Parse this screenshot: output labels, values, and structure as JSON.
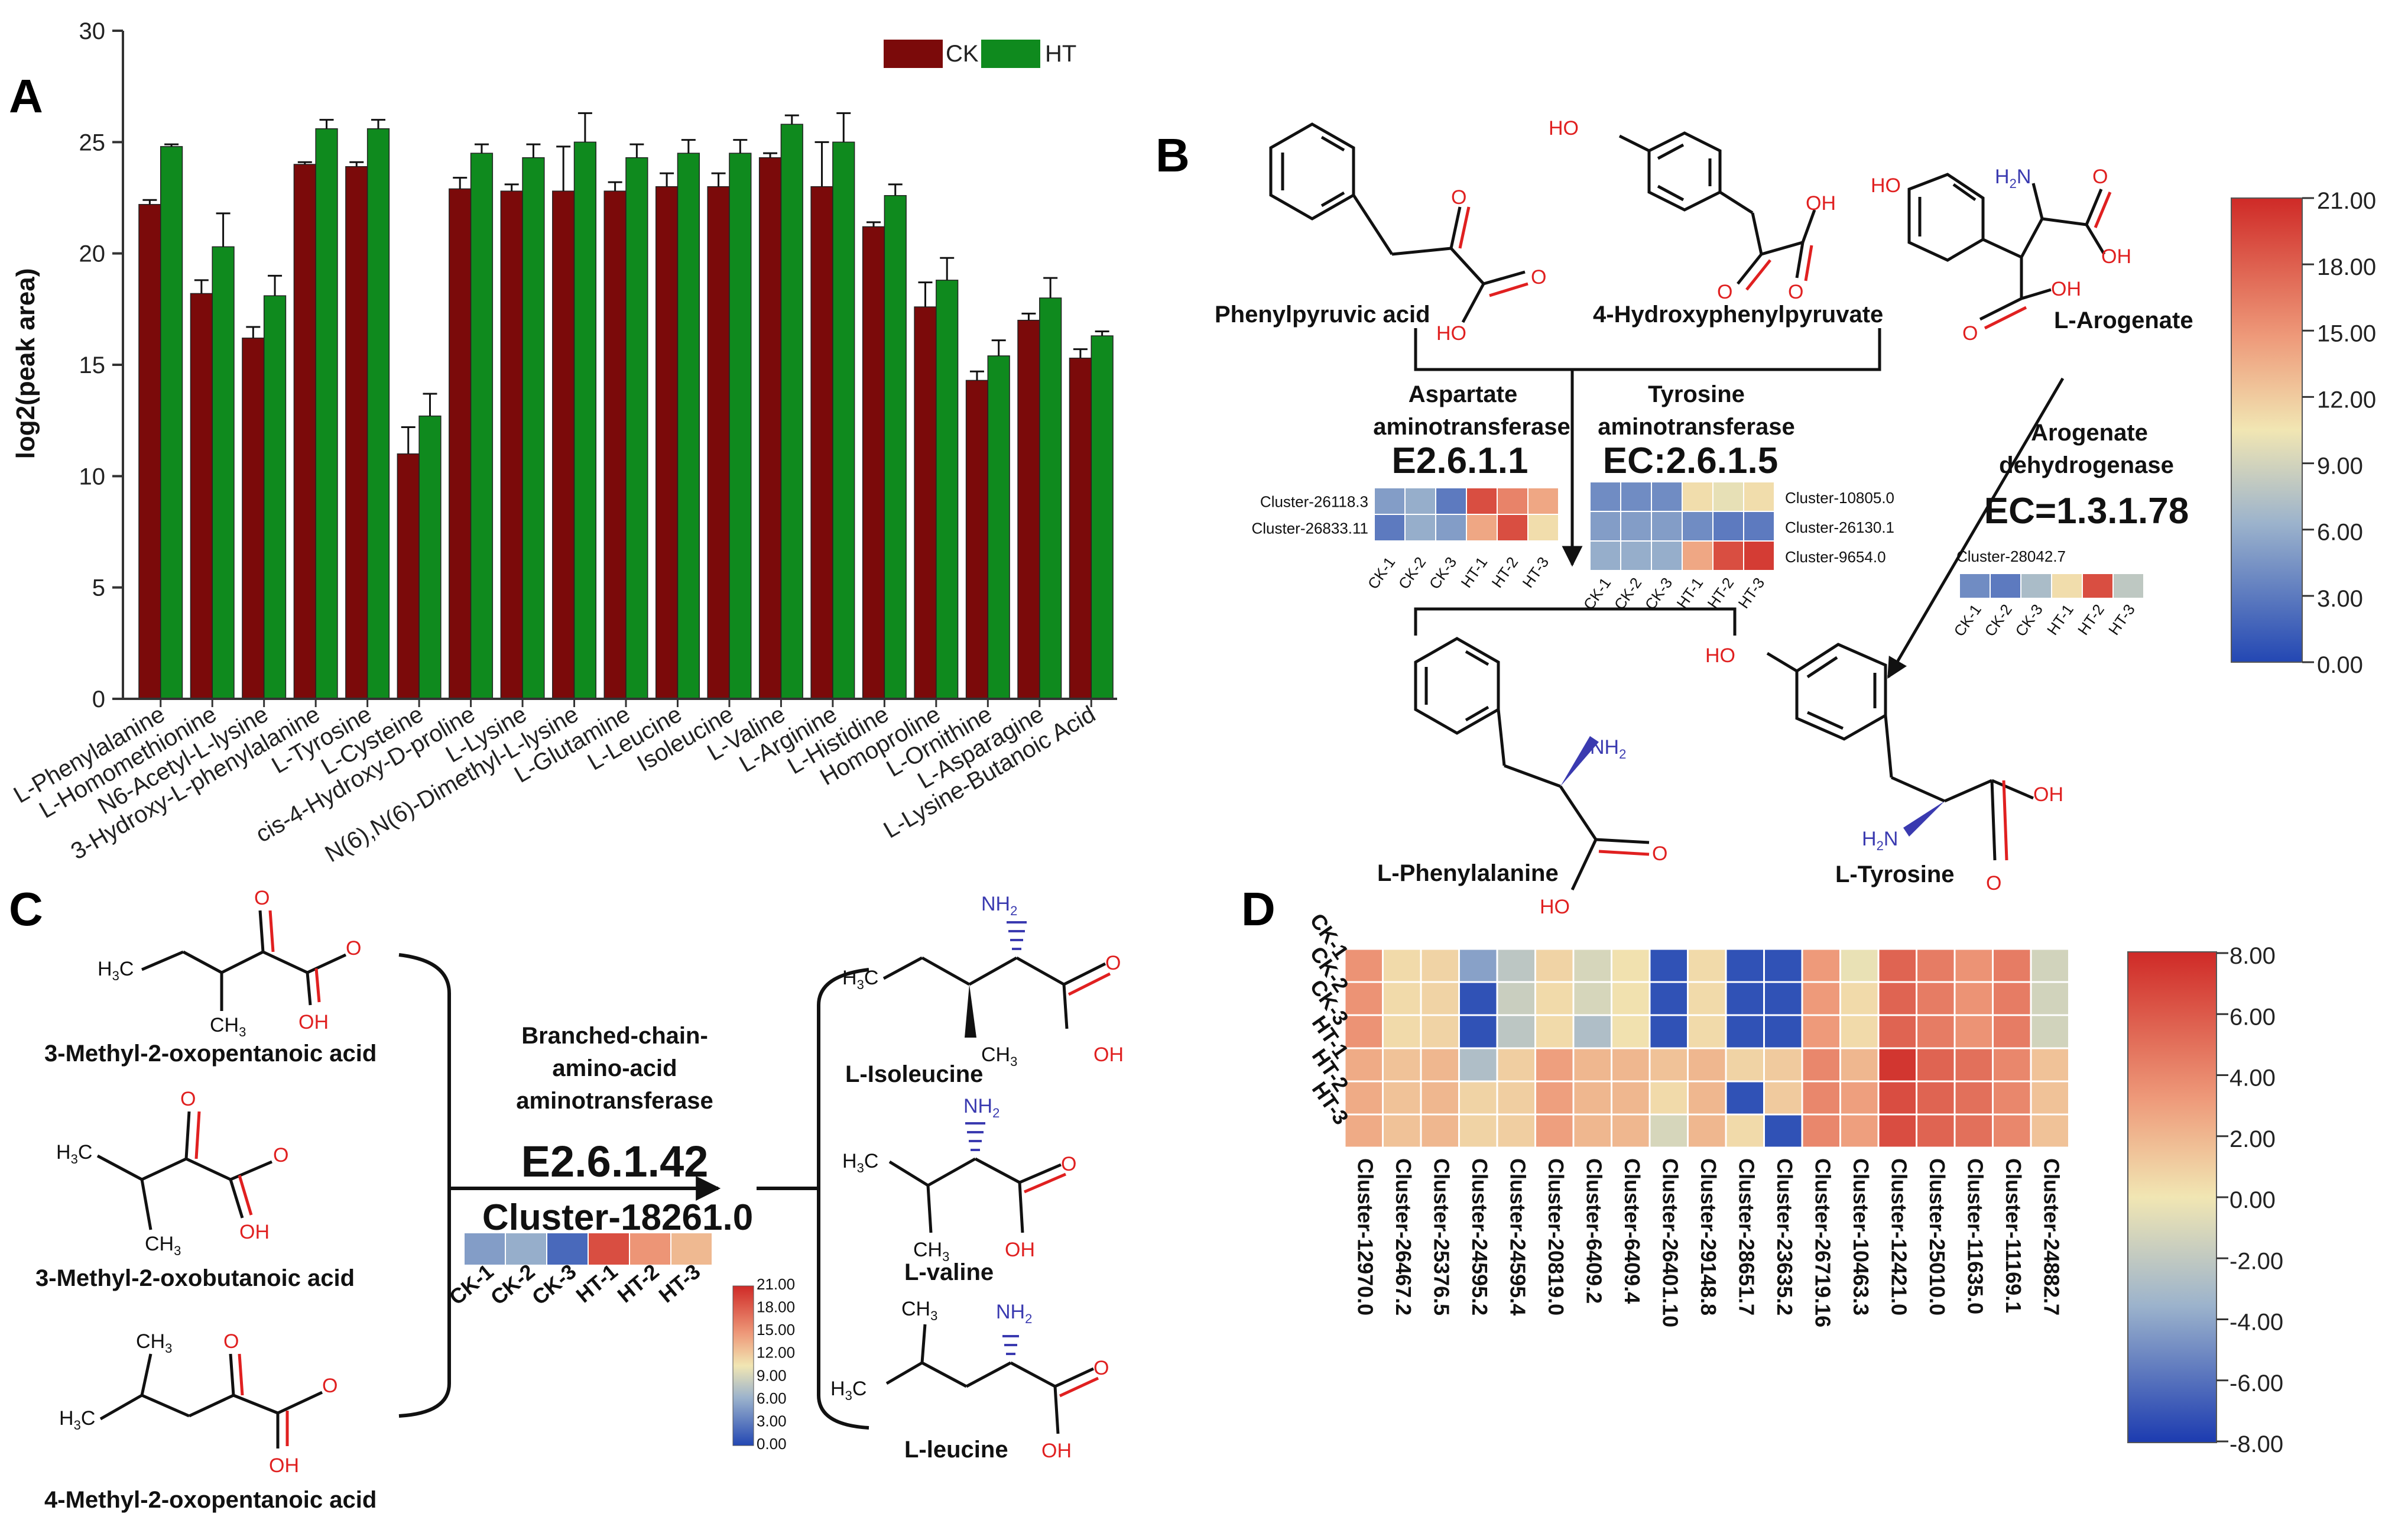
{
  "colors": {
    "ck": "#7b0a0a",
    "ht": "#0f8a1e",
    "red": "#d11f1f",
    "blue": "#2a4fa8",
    "ox": "#e02020",
    "nitro": "#3a3ab0"
  },
  "panel_labels": {
    "a": "A",
    "b": "B",
    "c": "C",
    "d": "D"
  },
  "chart_data": [
    {
      "type": "bar",
      "panel": "A",
      "ylabel": "log2(peak area)",
      "ylim": [
        0,
        30
      ],
      "yticks": [
        "0",
        "5",
        "10",
        "15",
        "20",
        "25",
        "30"
      ],
      "legend": [
        "CK",
        "HT"
      ],
      "categories": [
        "L-Phenylalanine",
        "L-Homomethionine",
        "N6-Acetyl-L-lysine",
        "3-Hydroxy-L-phenylalanine",
        "L-Tyrosine",
        "L-Cysteine",
        "cis-4-Hydroxy-D-proline",
        "L-Lysine",
        "N(6),N(6)-Dimethyl-L-lysine",
        "L-Glutamine",
        "L-Leucine",
        "Isoleucine",
        "L-Valine",
        "L-Arginine",
        "L-Histidine",
        "Homoproline",
        "L-Ornithine",
        "L-Asparagine",
        "L-Lysine-Butanoic Acid"
      ],
      "series": [
        {
          "name": "CK",
          "values": [
            22.2,
            18.2,
            16.2,
            24.0,
            23.9,
            11.0,
            22.9,
            22.8,
            22.8,
            22.8,
            23.0,
            23.0,
            24.3,
            23.0,
            21.2,
            17.6,
            14.3,
            17.0,
            15.3
          ],
          "errors": [
            0.2,
            0.6,
            0.5,
            0.1,
            0.2,
            1.2,
            0.5,
            0.3,
            2.0,
            0.4,
            0.6,
            0.6,
            0.2,
            2.0,
            0.2,
            1.1,
            0.4,
            0.3,
            0.4
          ]
        },
        {
          "name": "HT",
          "values": [
            24.8,
            20.3,
            18.1,
            25.6,
            25.6,
            12.7,
            24.5,
            24.3,
            25.0,
            24.3,
            24.5,
            24.5,
            25.8,
            25.0,
            22.6,
            18.8,
            15.4,
            18.0,
            16.3
          ],
          "errors": [
            0.1,
            1.5,
            0.9,
            0.4,
            0.4,
            1.0,
            0.4,
            0.6,
            1.3,
            0.6,
            0.6,
            0.6,
            0.4,
            1.3,
            0.5,
            1.0,
            0.7,
            0.9,
            0.2
          ]
        }
      ]
    },
    {
      "type": "heatmap",
      "panel": "D",
      "rows": [
        "CK-1",
        "CK-2",
        "CK-3",
        "HT-1",
        "HT-2",
        "HT-3"
      ],
      "columns": [
        "Cluster-12970.0",
        "Cluster-26467.2",
        "Cluster-25376.5",
        "Cluster-24595.2",
        "Cluster-24595.4",
        "Cluster-20819.0",
        "Cluster-6409.2",
        "Cluster-6409.4",
        "Cluster-26401.10",
        "Cluster-29148.8",
        "Cluster-28651.7",
        "Cluster-23635.2",
        "Cluster-26719.16",
        "Cluster-10463.3",
        "Cluster-12421.0",
        "Cluster-25010.0",
        "Cluster-11635.0",
        "Cluster-11169.1",
        "Cluster-24882.7"
      ],
      "values": [
        [
          3.5,
          0.5,
          0.8,
          -4.0,
          -2.0,
          0.8,
          -1.0,
          0.2,
          -7.5,
          0.5,
          -7.5,
          -7.5,
          3.2,
          -0.3,
          5.5,
          4.5,
          3.5,
          4.5,
          -1.2
        ],
        [
          3.5,
          0.5,
          0.8,
          -7.5,
          -1.5,
          0.5,
          -1.0,
          0.2,
          -7.5,
          0.5,
          -7.5,
          -7.5,
          3.2,
          0.5,
          5.5,
          4.5,
          3.5,
          4.5,
          -1.2
        ],
        [
          3.5,
          0.5,
          0.8,
          -7.5,
          -2.0,
          0.5,
          -2.5,
          0.2,
          -7.5,
          0.5,
          -7.5,
          -7.5,
          3.2,
          0.5,
          5.5,
          4.5,
          3.5,
          4.5,
          -1.2
        ],
        [
          2.5,
          1.5,
          2.0,
          -2.5,
          1.0,
          3.0,
          2.0,
          2.0,
          1.5,
          2.0,
          0.8,
          1.2,
          4.0,
          2.0,
          7.5,
          5.5,
          5.0,
          4.0,
          1.5
        ],
        [
          2.5,
          1.5,
          2.0,
          0.8,
          1.0,
          3.0,
          2.0,
          2.0,
          0.5,
          2.0,
          -7.5,
          1.2,
          4.0,
          3.0,
          6.5,
          5.5,
          5.0,
          4.0,
          1.5
        ],
        [
          2.5,
          1.5,
          2.0,
          0.8,
          1.0,
          3.0,
          2.0,
          2.0,
          -1.0,
          2.0,
          0.5,
          -7.5,
          4.0,
          3.0,
          6.5,
          5.5,
          5.0,
          4.0,
          1.5
        ]
      ],
      "scale_ticks": [
        "8.00",
        "6.00",
        "4.00",
        "2.00",
        "0.00",
        "-2.00",
        "-4.00",
        "-6.00",
        "-8.00"
      ],
      "range": [
        -8,
        8
      ]
    }
  ],
  "panel_b": {
    "scale_ticks": [
      "21.00",
      "18.00",
      "15.00",
      "12.00",
      "9.00",
      "6.00",
      "3.00",
      "0.00"
    ],
    "range": [
      0,
      21
    ],
    "substrates": {
      "phenylpyruvic": "Phenylpyruvic acid",
      "hydroxyphenylpyruvate": "4-Hydroxyphenylpyruvate",
      "arogenate": "L-Arogenate"
    },
    "enzymes": {
      "asp_name1": "Aspartate",
      "asp_name2": "aminotransferase",
      "asp_ec": "E2.6.1.1",
      "tyr_name1": "Tyrosine",
      "tyr_name2": "aminotransferase",
      "tyr_ec": "EC:2.6.1.5",
      "aro_name1": "Arogenate",
      "aro_name2": "dehydrogenase",
      "aro_ec": "EC=1.3.1.78"
    },
    "samples": [
      "CK-1",
      "CK-2",
      "CK-3",
      "HT-1",
      "HT-2",
      "HT-3"
    ],
    "asp_rows": [
      {
        "label": "Cluster-26118.3",
        "values": [
          5,
          6,
          3,
          19,
          16,
          14
        ]
      },
      {
        "label": "Cluster-26833.11",
        "values": [
          3,
          6,
          5,
          14,
          19,
          11
        ]
      }
    ],
    "tyr_rows": [
      {
        "label": "Cluster-10805.0",
        "values": [
          4,
          4,
          4,
          11,
          10,
          11
        ]
      },
      {
        "label": "Cluster-26130.1",
        "values": [
          5,
          5,
          5,
          4,
          3,
          3
        ]
      },
      {
        "label": "Cluster-9654.0",
        "values": [
          6,
          6,
          6,
          14,
          19,
          20
        ]
      }
    ],
    "aro_rows": [
      {
        "label": "Cluster-28042.7",
        "values": [
          4,
          3,
          7,
          11,
          19,
          8
        ]
      }
    ],
    "products": {
      "phe": "L-Phenylalanine",
      "tyr": "L-Tyrosine"
    }
  },
  "panel_c": {
    "substrates": {
      "s1": "3-Methyl-2-oxopentanoic acid",
      "s2": "3-Methyl-2-oxobutanoic acid",
      "s3": "4-Methyl-2-oxopentanoic acid"
    },
    "enzyme": {
      "line1": "Branched-chain-",
      "line2": "amino-acid",
      "line3": "aminotransferase",
      "ec": "E2.6.1.42",
      "cluster": "Cluster-18261.0"
    },
    "samples": [
      "CK-1",
      "CK-2",
      "CK-3",
      "HT-1",
      "HT-2",
      "HT-3"
    ],
    "values": [
      5,
      6,
      2,
      19,
      15,
      13
    ],
    "scale_ticks": [
      "21.00",
      "18.00",
      "15.00",
      "12.00",
      "9.00",
      "6.00",
      "3.00",
      "0.00"
    ],
    "products": {
      "p1": "L-Isoleucine",
      "p2": "L-valine",
      "p3": "L-leucine"
    }
  },
  "atoms": {
    "o": "O",
    "oh": "OH",
    "ho": "HO",
    "nh2": "NH",
    "h2n": "H",
    "n": "N",
    "two": "2",
    "h3c": "H",
    "three": "3",
    "ch3": "CH",
    "c": "C"
  }
}
